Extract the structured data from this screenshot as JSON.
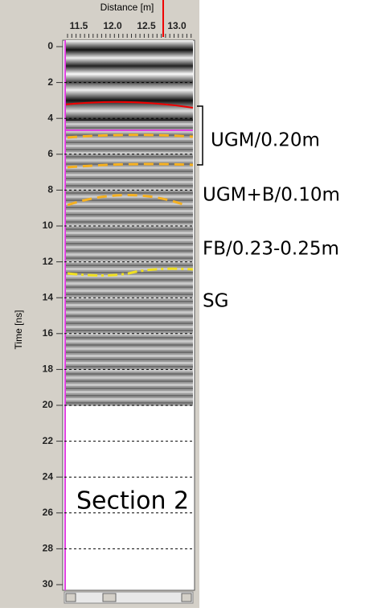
{
  "x_axis": {
    "label": "Distance [m]",
    "ticks": [
      "11.5",
      "12.0",
      "12.5",
      "13.0"
    ]
  },
  "y_axis": {
    "label": "Time [ns]",
    "ticks": [
      "0",
      "2",
      "4",
      "6",
      "8",
      "10",
      "12",
      "14",
      "16",
      "18",
      "20",
      "22",
      "24",
      "26",
      "28",
      "30"
    ]
  },
  "annotations": [
    "UGM/0.20m",
    "UGM+B/0.10m",
    "FB/0.23-0.25m",
    "SG"
  ],
  "section_label": "Section 2"
}
